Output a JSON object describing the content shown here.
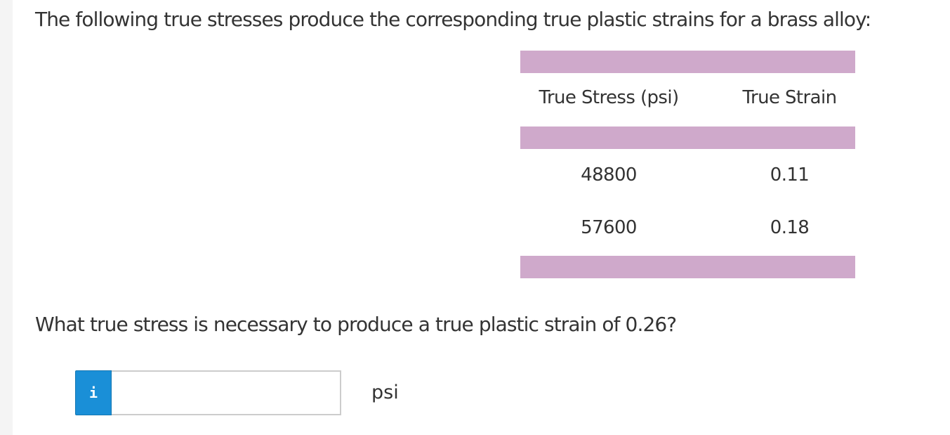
{
  "problem": {
    "intro_text": "The following true stresses produce the corresponding true plastic strains for a brass alloy:",
    "table": {
      "accent_color": "#cfa9cb",
      "headers": [
        "True Stress (psi)",
        "True Strain"
      ],
      "rows": [
        [
          "48800",
          "0.11"
        ],
        [
          "57600",
          "0.18"
        ]
      ]
    },
    "question_text": "What true stress is necessary to produce a true plastic strain of 0.26?"
  },
  "answer": {
    "info_icon": "info-icon",
    "info_glyph": "i",
    "info_color": "#1a8fd7",
    "value": "",
    "unit": "psi"
  }
}
